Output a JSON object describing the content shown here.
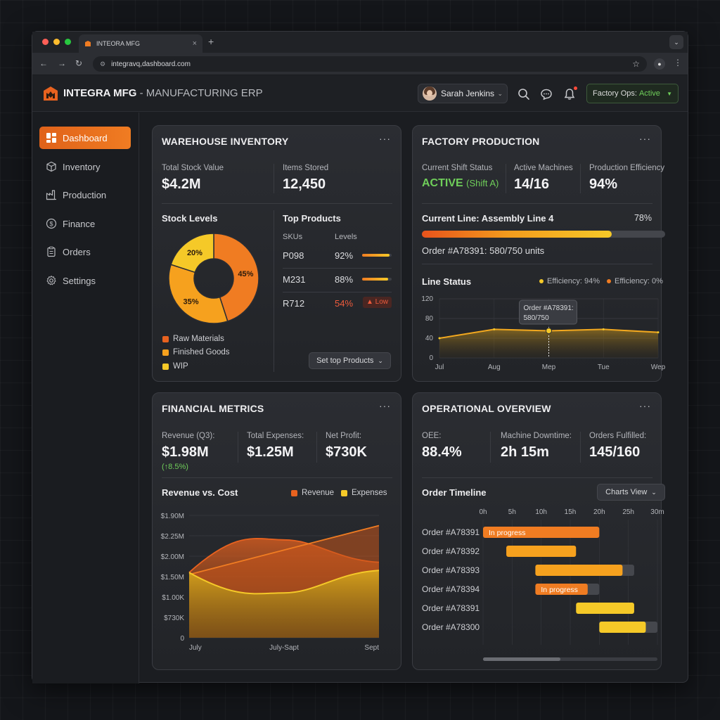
{
  "browser": {
    "tab_title": "INTEORA MFG",
    "url": "integravq,dashboard.com"
  },
  "colors": {
    "accent": "#f07c22",
    "amber": "#f6a11e",
    "yellow": "#f5c928",
    "green": "#6fce5a",
    "red": "#ef5b3c"
  },
  "header": {
    "brand_name": "INTEGRA MFG",
    "brand_suffix": "- MANUFACTURING ERP",
    "user_name": "Sarah Jenkins",
    "factory_ops_label": "Factory Ops:",
    "factory_ops_status": "Active",
    "icons": [
      "search-icon",
      "chat-icon",
      "bell-icon"
    ]
  },
  "sidebar": {
    "items": [
      {
        "label": "Dashboard",
        "icon": "dashboard-icon",
        "active": true
      },
      {
        "label": "Inventory",
        "icon": "box-icon",
        "active": false
      },
      {
        "label": "Production",
        "icon": "factory-icon",
        "active": false
      },
      {
        "label": "Finance",
        "icon": "dollar-icon",
        "active": false
      },
      {
        "label": "Orders",
        "icon": "clipboard-icon",
        "active": false
      },
      {
        "label": "Settings",
        "icon": "gear-icon",
        "active": false
      }
    ]
  },
  "warehouse": {
    "title": "WAREHOUSE INVENTORY",
    "total_stock_label": "Total Stock Value",
    "total_stock_value": "$4.2M",
    "items_stored_label": "Items Stored",
    "items_stored_value": "12,450",
    "stock_levels_title": "Stock Levels",
    "top_products_title": "Top Products",
    "col_skus": "SKUs",
    "col_levels": "Levels",
    "products": [
      {
        "sku": "P098",
        "level": "92%",
        "level_num": 0.92,
        "low": false
      },
      {
        "sku": "M231",
        "level": "88%",
        "level_num": 0.88,
        "low": false
      },
      {
        "sku": "R712",
        "level": "54%",
        "level_num": 0.54,
        "low": true,
        "badge": "Low"
      }
    ],
    "set_top_button": "Set top Products"
  },
  "factory": {
    "title": "FACTORY PRODUCTION",
    "shift_label": "Current Shift Status",
    "shift_value": "ACTIVE",
    "shift_sub": "(Shift A)",
    "machines_label": "Active Machines",
    "machines_value": "14/16",
    "efficiency_label": "Production Efficiency",
    "efficiency_value": "94%",
    "line_label": "Current Line: Assembly Line 4",
    "line_pct": "78%",
    "line_progress": 0.78,
    "order_text": "Order #A78391: 580/750 units",
    "line_status_title": "Line Status",
    "legend_1": "Efficiency: 94%",
    "legend_2": "Efficiency: 0%",
    "tooltip_line1": "Order #A78391:",
    "tooltip_line2": "580/750"
  },
  "financial": {
    "title": "FINANCIAL METRICS",
    "revenue_label": "Revenue (Q3):",
    "revenue_value": "$1.98M",
    "revenue_change": "(↑8.5%)",
    "expenses_label": "Total Expenses:",
    "expenses_value": "$1.25M",
    "profit_label": "Net Profit:",
    "profit_value": "$730K",
    "chart_title": "Revenue vs. Cost",
    "legend_revenue": "Revenue",
    "legend_expenses": "Expenses"
  },
  "operational": {
    "title": "OPERATIONAL OVERVIEW",
    "oee_label": "OEE:",
    "oee_value": "88.4%",
    "downtime_label": "Machine Downtime:",
    "downtime_value": "2h 15m",
    "fulfilled_label": "Orders Fulfilled:",
    "fulfilled_value": "145/160",
    "timeline_title": "Order Timeline",
    "charts_view_button": "Charts View"
  },
  "chart_data": [
    {
      "type": "pie",
      "title": "Stock Levels",
      "categories": [
        "Raw Materials",
        "Finished Goods",
        "WIP"
      ],
      "values": [
        45,
        35,
        20
      ],
      "labels": [
        "45%",
        "35%",
        "20%"
      ],
      "colors": [
        "#f07c22",
        "#f6a11e",
        "#f5c928"
      ],
      "donut": true
    },
    {
      "type": "area",
      "title": "Line Status",
      "x": [
        "Jul",
        "Aug",
        "Mep",
        "Tue",
        "Wep"
      ],
      "y_ticks": [
        "0",
        "40",
        "80",
        "120"
      ],
      "ylim": [
        0,
        120
      ],
      "series": [
        {
          "name": "Efficiency: 94%",
          "values": [
            40,
            58,
            55,
            58,
            52
          ]
        }
      ],
      "highlight_index": 2,
      "grid": true
    },
    {
      "type": "area",
      "title": "Revenue vs. Cost",
      "x": [
        "July",
        "July-Sapt",
        "Sept"
      ],
      "y_ticks": [
        "0",
        "$730K",
        "$1.00K",
        "$1.50M",
        "$2.00M",
        "$2.25M",
        "$1.90M"
      ],
      "series": [
        {
          "name": "Revenue",
          "color": "#e8621f",
          "values": [
            1.55,
            2.15,
            2.75
          ]
        },
        {
          "name": "Expenses",
          "color": "#f5c928",
          "values": [
            1.6,
            1.1,
            1.65
          ]
        }
      ],
      "band_top": [
        1.6,
        2.4,
        1.85
      ],
      "grid": true
    },
    {
      "type": "bar",
      "title": "Order Timeline",
      "x_ticks": [
        "0h",
        "5h",
        "10h",
        "15h",
        "20h",
        "25h",
        "30m"
      ],
      "xlim": [
        0,
        30
      ],
      "rows": [
        {
          "label": "Order #A78391",
          "start": 0,
          "end": 20,
          "track_end": 20,
          "color": "#f07c22",
          "text": "In progress"
        },
        {
          "label": "Order #A78392",
          "start": 4,
          "end": 16,
          "track_end": 16,
          "color": "#f6a11e",
          "text": ""
        },
        {
          "label": "Order #A78393",
          "start": 9,
          "end": 24,
          "track_end": 26,
          "color": "#f6a11e",
          "text": ""
        },
        {
          "label": "Order #A78394",
          "start": 9,
          "end": 18,
          "track_end": 20,
          "color": "#f07c22",
          "text": "In progress"
        },
        {
          "label": "Order #A78391",
          "start": 16,
          "end": 26,
          "track_end": 26,
          "color": "#f5c928",
          "text": ""
        },
        {
          "label": "Order #A78300",
          "start": 20,
          "end": 28,
          "track_end": 30,
          "color": "#f5c928",
          "text": ""
        }
      ]
    }
  ]
}
